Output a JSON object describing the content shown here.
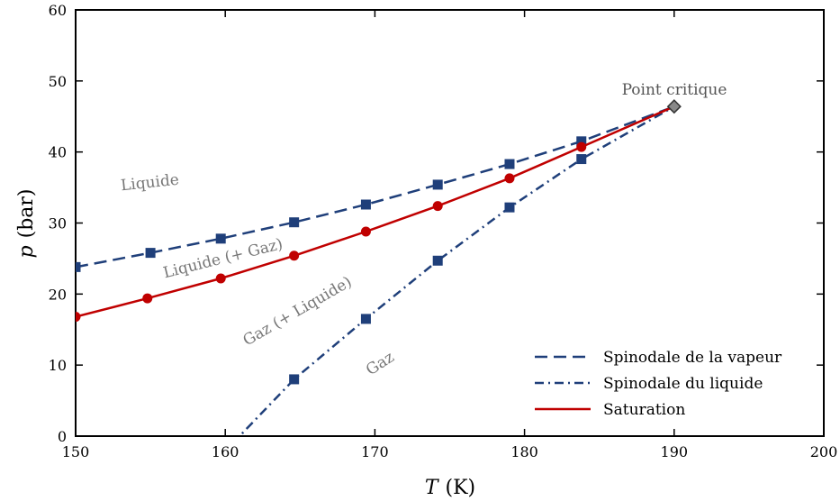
{
  "chart_data": {
    "type": "line",
    "xlabel_var": "T",
    "xlabel_unit": "(K)",
    "ylabel_var": "p",
    "ylabel_unit": "(bar)",
    "xlim": [
      150,
      200
    ],
    "ylim": [
      0,
      60
    ],
    "xticks": [
      150,
      160,
      170,
      180,
      190,
      200
    ],
    "yticks": [
      0,
      10,
      20,
      30,
      40,
      50,
      60
    ],
    "grid": false,
    "legend_position": "bottom-right",
    "series": [
      {
        "name": "Spinodale de la vapeur",
        "style": "dashed",
        "marker": "square",
        "color": "#1f3f7a",
        "x": [
          150.0,
          155.0,
          159.7,
          164.6,
          169.4,
          174.2,
          179.0,
          183.8
        ],
        "y": [
          23.8,
          25.8,
          27.8,
          30.1,
          32.6,
          35.4,
          38.3,
          41.5
        ],
        "line_to": [
          190.0,
          46.4
        ]
      },
      {
        "name": "Spinodale du liquide",
        "style": "dashdot",
        "marker": "square",
        "color": "#1f3f7a",
        "x": [
          164.6,
          169.4,
          174.2,
          179.0,
          183.8
        ],
        "y": [
          8.0,
          16.5,
          24.7,
          32.2,
          39.0
        ],
        "line_from": [
          160.5,
          -1.0
        ],
        "line_to": [
          190.0,
          46.4
        ]
      },
      {
        "name": "Saturation",
        "style": "solid",
        "marker": "circle",
        "color": "#c00000",
        "x": [
          150.0,
          154.8,
          159.7,
          164.6,
          169.4,
          174.2,
          179.0,
          183.8
        ],
        "y": [
          16.8,
          19.4,
          22.2,
          25.4,
          28.8,
          32.4,
          36.3,
          40.7
        ],
        "line_to": [
          190.0,
          46.4
        ]
      }
    ],
    "critical_point": {
      "label": "Point critique",
      "x": 190.0,
      "y": 46.4,
      "color": "#888888"
    },
    "region_labels": [
      {
        "text": "Liquide"
      },
      {
        "text": "Liquide (+ Gaz)"
      },
      {
        "text": "Gaz (+ Liquide)"
      },
      {
        "text": "Gaz"
      }
    ]
  }
}
